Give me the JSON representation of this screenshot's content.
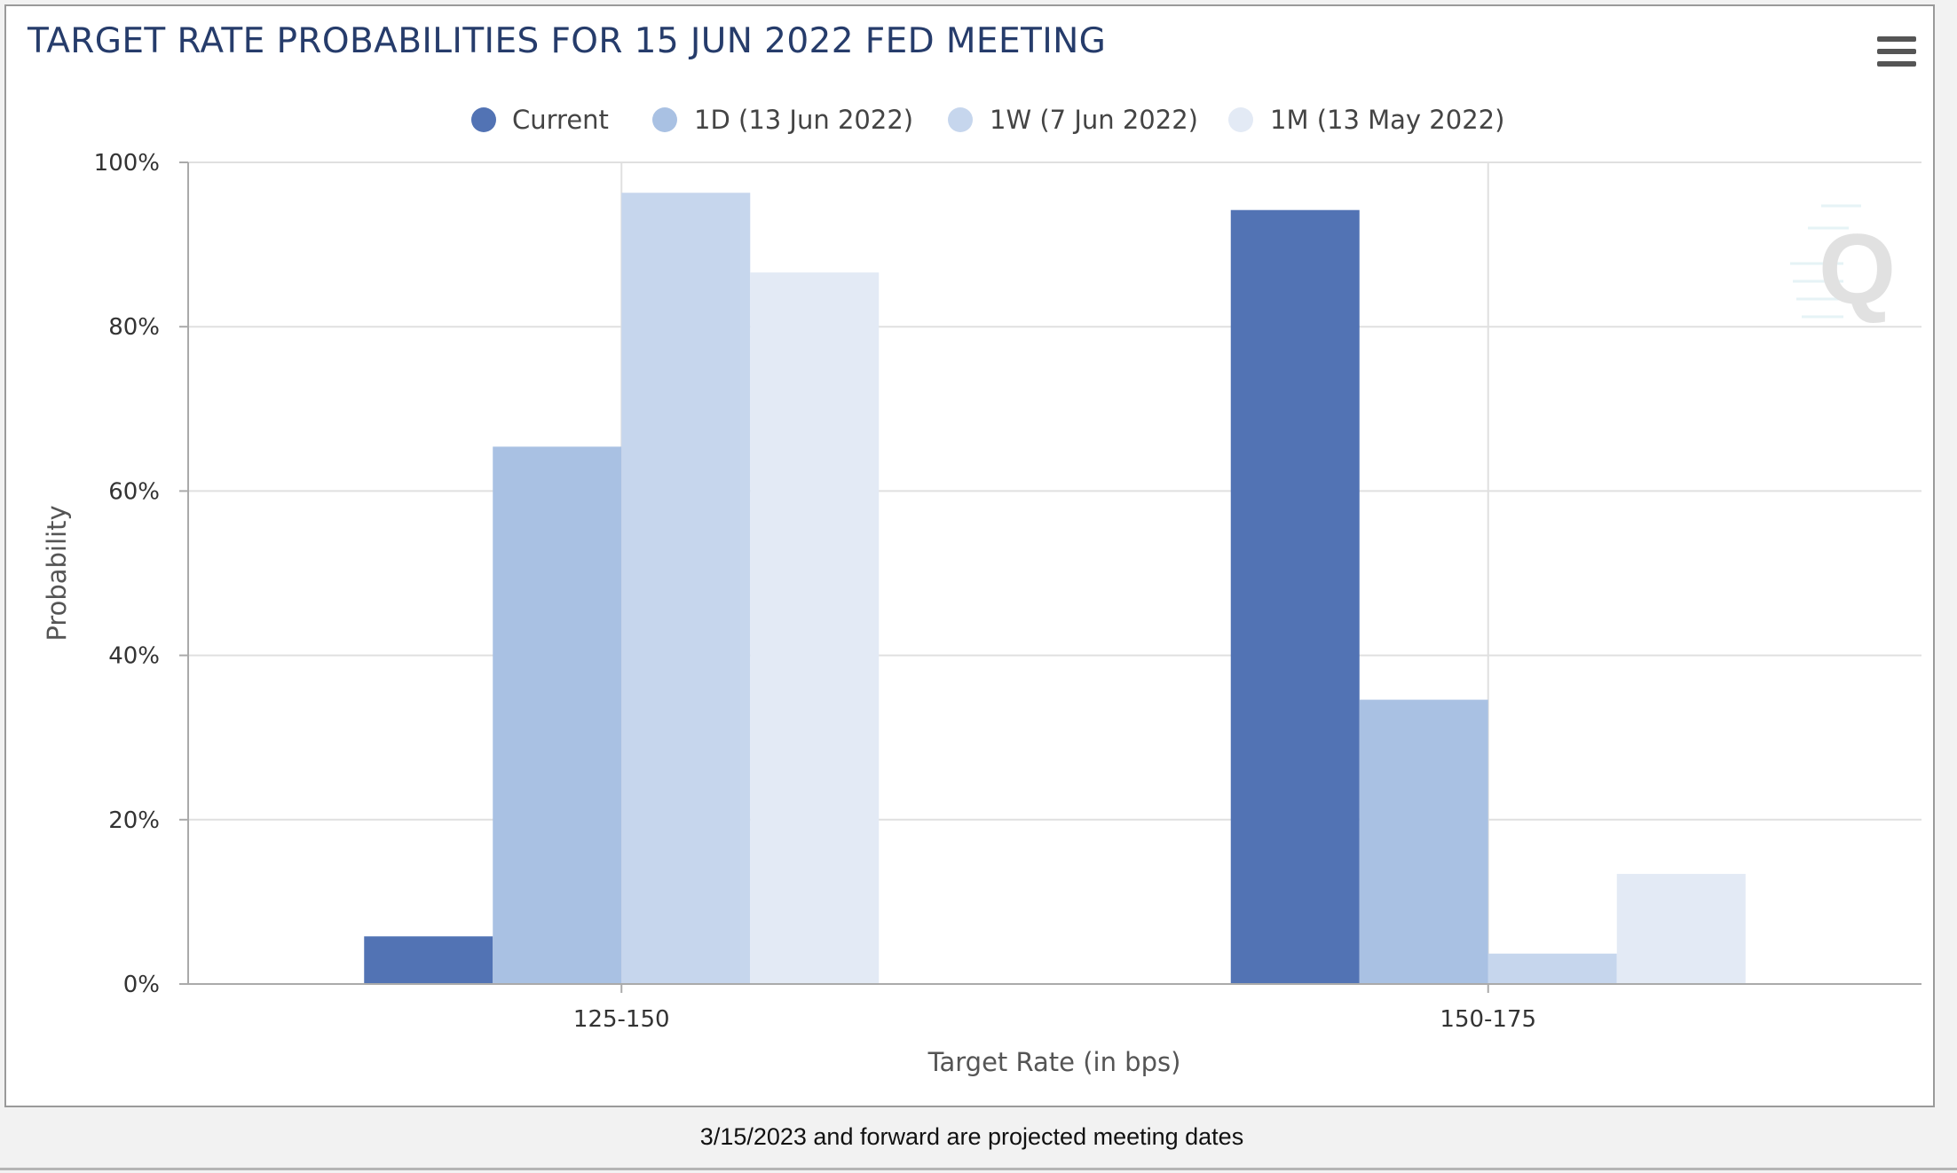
{
  "footer_note": "3/15/2023 and forward are projected meeting dates",
  "menu": {
    "icon": "hamburger-menu-icon"
  },
  "watermark": {
    "icon": "q-logo-icon",
    "letter": "Q"
  },
  "colors": {
    "current": "#5273b4",
    "1d": "#a9c1e3",
    "1w": "#c6d6ed",
    "1m": "#e3eaf5",
    "title": "#263c6b",
    "grid": "#e0e0e0"
  },
  "chart_data": {
    "type": "bar",
    "title": "TARGET RATE PROBABILITIES FOR 15 JUN 2022 FED MEETING",
    "xlabel": "Target Rate (in bps)",
    "ylabel": "Probability",
    "categories": [
      "125-150",
      "150-175"
    ],
    "ylim": [
      0,
      100
    ],
    "yticks": [
      "0%",
      "20%",
      "40%",
      "60%",
      "80%",
      "100%"
    ],
    "grid": true,
    "legend_position": "top-center",
    "series": [
      {
        "name": "Current",
        "color": "#5273b4",
        "values": [
          5.8,
          94.2
        ]
      },
      {
        "name": "1D (13 Jun 2022)",
        "color": "#a9c1e3",
        "values": [
          65.4,
          34.6
        ]
      },
      {
        "name": "1W (7 Jun 2022)",
        "color": "#c6d6ed",
        "values": [
          96.3,
          3.7
        ]
      },
      {
        "name": "1M (13 May 2022)",
        "color": "#e3eaf5",
        "values": [
          86.6,
          13.4
        ]
      }
    ]
  }
}
